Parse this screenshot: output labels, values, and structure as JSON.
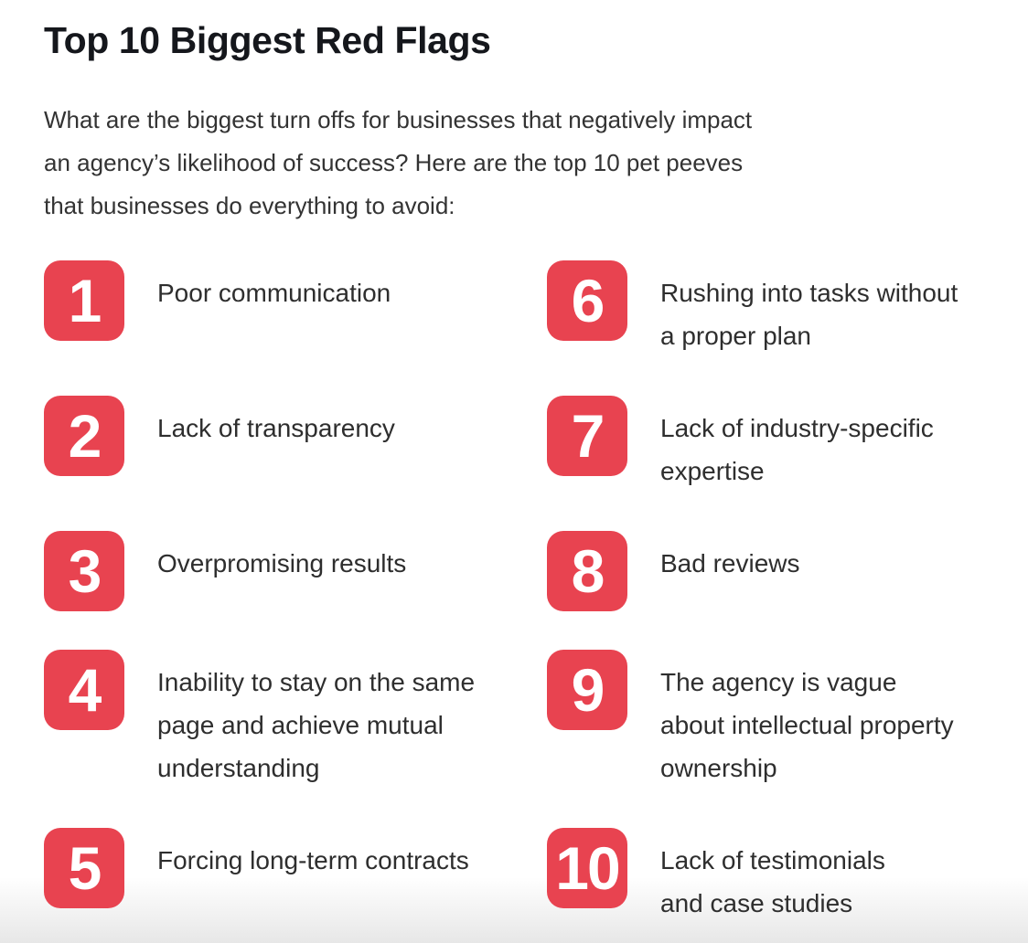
{
  "page": {
    "title": "Top 10 Biggest Red Flags",
    "intro_lines": [
      "What are the biggest turn offs for businesses that negatively impact",
      "an agency’s likelihood of success? Here are the top 10 pet peeves",
      "that businesses do everything to avoid:"
    ]
  },
  "colors": {
    "badge_red": "#e84350",
    "title_text": "#15171c",
    "body_text": "#2e2e2e"
  },
  "list": {
    "items": [
      {
        "number": "1",
        "lines": [
          "Poor communication"
        ]
      },
      {
        "number": "2",
        "lines": [
          "Lack of transparency"
        ]
      },
      {
        "number": "3",
        "lines": [
          "Overpromising results"
        ]
      },
      {
        "number": "4",
        "lines": [
          "Inability to stay on the same",
          "page and achieve mutual",
          "understanding"
        ]
      },
      {
        "number": "5",
        "lines": [
          "Forcing long-term contracts"
        ]
      },
      {
        "number": "6",
        "lines": [
          "Rushing into tasks without",
          "a proper plan"
        ]
      },
      {
        "number": "7",
        "lines": [
          "Lack of industry-specific",
          "expertise"
        ]
      },
      {
        "number": "8",
        "lines": [
          "Bad reviews"
        ]
      },
      {
        "number": "9",
        "lines": [
          "The agency is vague",
          "about intellectual property",
          "ownership"
        ]
      },
      {
        "number": "10",
        "lines": [
          "Lack of testimonials",
          "and case studies"
        ]
      }
    ]
  }
}
